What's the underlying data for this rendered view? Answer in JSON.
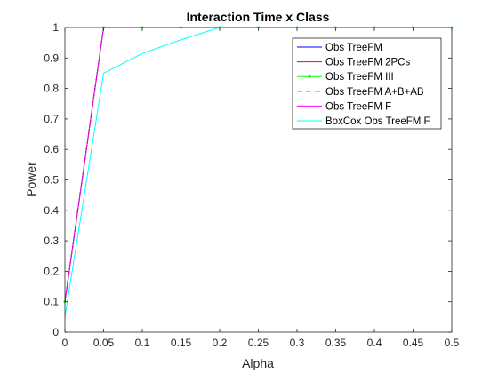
{
  "chart_data": {
    "type": "line",
    "title": "Interaction Time x Class",
    "xlabel": "Alpha",
    "ylabel": "Power",
    "xlim": [
      0,
      0.5
    ],
    "ylim": [
      0,
      1
    ],
    "xticks": [
      0,
      0.05,
      0.1,
      0.15,
      0.2,
      0.25,
      0.3,
      0.35,
      0.4,
      0.45,
      0.5
    ],
    "xtick_labels": [
      "0",
      "0.05",
      "0.1",
      "0.15",
      "0.2",
      "0.25",
      "0.3",
      "0.35",
      "0.4",
      "0.45",
      "0.5"
    ],
    "yticks": [
      0,
      0.1,
      0.2,
      0.3,
      0.4,
      0.5,
      0.6,
      0.7,
      0.8,
      0.9,
      1
    ],
    "ytick_labels": [
      "0",
      "0.1",
      "0.2",
      "0.3",
      "0.4",
      "0.5",
      "0.6",
      "0.7",
      "0.8",
      "0.9",
      "1"
    ],
    "grid": false,
    "legend_position": "top-right",
    "series": [
      {
        "name": "Obs TreeFM",
        "color": "#0000ff",
        "dash": "solid",
        "marker": "none",
        "x": [
          0,
          0.05,
          0.1,
          0.15,
          0.2,
          0.25,
          0.3,
          0.35,
          0.4,
          0.45,
          0.5
        ],
        "y": [
          0.1,
          1,
          1,
          1,
          1,
          1,
          1,
          1,
          1,
          1,
          1
        ]
      },
      {
        "name": "Obs TreeFM 2PCs",
        "color": "#ff0000",
        "dash": "solid",
        "marker": "none",
        "x": [
          0,
          0.05,
          0.1,
          0.15,
          0.2,
          0.25,
          0.3,
          0.35,
          0.4,
          0.45,
          0.5
        ],
        "y": [
          0.1,
          1,
          1,
          1,
          1,
          1,
          1,
          1,
          1,
          1,
          1
        ]
      },
      {
        "name": "Obs TreeFM III",
        "color": "#00ff00",
        "dash": "solid",
        "marker": "dot",
        "x": [
          0,
          0.05,
          0.1,
          0.15,
          0.2,
          0.25,
          0.3,
          0.35,
          0.4,
          0.45,
          0.5
        ],
        "y": [
          0.1,
          1,
          1,
          1,
          1,
          1,
          1,
          1,
          1,
          1,
          1
        ]
      },
      {
        "name": "Obs TreeFM A+B+AB",
        "color": "#000000",
        "dash": "dashed",
        "marker": "none",
        "x": [
          0,
          0.05,
          0.1,
          0.15,
          0.2,
          0.25,
          0.3,
          0.35,
          0.4,
          0.45,
          0.5
        ],
        "y": [
          0.1,
          1,
          1,
          1,
          1,
          1,
          1,
          1,
          1,
          1,
          1
        ]
      },
      {
        "name": "Obs TreeFM F",
        "color": "#ff00ff",
        "dash": "solid",
        "marker": "none",
        "x": [
          0,
          0.05,
          0.1,
          0.15,
          0.2,
          0.25,
          0.3,
          0.35,
          0.4,
          0.45,
          0.5
        ],
        "y": [
          0.1,
          1,
          1,
          1,
          1,
          1,
          1,
          1,
          1,
          1,
          1
        ]
      },
      {
        "name": "BoxCox Obs TreeFM F",
        "color": "#00ffff",
        "dash": "solid",
        "marker": "none",
        "x": [
          0,
          0.05,
          0.1,
          0.15,
          0.2,
          0.25,
          0.3,
          0.35,
          0.4,
          0.45,
          0.5
        ],
        "y": [
          0.05,
          0.85,
          0.915,
          0.96,
          1,
          1,
          1,
          1,
          1,
          1,
          1
        ]
      }
    ]
  }
}
